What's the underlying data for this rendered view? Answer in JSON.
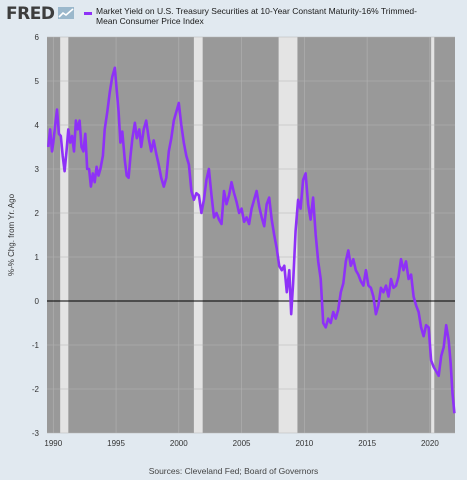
{
  "header": {
    "logo_text": "FRED",
    "legend_label": "Market Yield on U.S. Treasury Securities at 10-Year Constant Maturity-16% Trimmed-Mean Consumer Price Index",
    "series_color": "#8e31f7"
  },
  "footer": {
    "source": "Sources: Cleveland Fed; Board of Governors"
  },
  "chart_data": {
    "type": "line",
    "ylabel": "%-% Chg. from Yr. Ago",
    "xlim": [
      1989.5,
      2022.0
    ],
    "ylim": [
      -3,
      6
    ],
    "x_ticks": [
      "1990",
      "1995",
      "2000",
      "2005",
      "2010",
      "2015",
      "2020"
    ],
    "y_ticks": [
      "-3",
      "-2",
      "-1",
      "0",
      "1",
      "2",
      "3",
      "4",
      "5",
      "6"
    ],
    "grid": true,
    "background": "#999999",
    "recession_color": "#e4e4e4",
    "zero_line": true,
    "recessions": [
      [
        1990.55,
        1991.2
      ],
      [
        2001.2,
        2001.9
      ],
      [
        2007.95,
        2009.45
      ],
      [
        2020.1,
        2020.35
      ]
    ],
    "series": [
      {
        "color": "#8e31f7",
        "points": [
          [
            1989.6,
            3.5
          ],
          [
            1989.75,
            3.9
          ],
          [
            1989.9,
            3.4
          ],
          [
            1990.0,
            3.6
          ],
          [
            1990.15,
            4.0
          ],
          [
            1990.3,
            4.35
          ],
          [
            1990.45,
            3.8
          ],
          [
            1990.6,
            3.75
          ],
          [
            1990.75,
            3.3
          ],
          [
            1990.9,
            2.95
          ],
          [
            1991.05,
            3.4
          ],
          [
            1991.2,
            3.9
          ],
          [
            1991.35,
            3.6
          ],
          [
            1991.5,
            3.75
          ],
          [
            1991.65,
            3.4
          ],
          [
            1991.8,
            4.1
          ],
          [
            1991.95,
            3.9
          ],
          [
            1992.1,
            4.1
          ],
          [
            1992.25,
            3.5
          ],
          [
            1992.4,
            3.4
          ],
          [
            1992.55,
            3.8
          ],
          [
            1992.7,
            3.0
          ],
          [
            1992.85,
            3.0
          ],
          [
            1993.0,
            2.6
          ],
          [
            1993.15,
            2.9
          ],
          [
            1993.3,
            2.7
          ],
          [
            1993.45,
            3.05
          ],
          [
            1993.6,
            2.85
          ],
          [
            1993.75,
            3.0
          ],
          [
            1993.95,
            3.3
          ],
          [
            1994.1,
            3.9
          ],
          [
            1994.3,
            4.3
          ],
          [
            1994.5,
            4.75
          ],
          [
            1994.7,
            5.1
          ],
          [
            1994.9,
            5.3
          ],
          [
            1995.05,
            4.8
          ],
          [
            1995.2,
            4.3
          ],
          [
            1995.35,
            3.6
          ],
          [
            1995.5,
            3.85
          ],
          [
            1995.7,
            3.2
          ],
          [
            1995.85,
            2.85
          ],
          [
            1996.0,
            2.8
          ],
          [
            1996.15,
            3.3
          ],
          [
            1996.3,
            3.7
          ],
          [
            1996.5,
            4.05
          ],
          [
            1996.65,
            3.7
          ],
          [
            1996.85,
            3.9
          ],
          [
            1997.0,
            3.5
          ],
          [
            1997.2,
            3.9
          ],
          [
            1997.4,
            4.1
          ],
          [
            1997.6,
            3.7
          ],
          [
            1997.8,
            3.4
          ],
          [
            1998.0,
            3.65
          ],
          [
            1998.2,
            3.35
          ],
          [
            1998.4,
            3.1
          ],
          [
            1998.6,
            2.8
          ],
          [
            1998.8,
            2.6
          ],
          [
            1999.0,
            2.8
          ],
          [
            1999.2,
            3.4
          ],
          [
            1999.4,
            3.7
          ],
          [
            1999.6,
            4.1
          ],
          [
            1999.8,
            4.3
          ],
          [
            2000.0,
            4.5
          ],
          [
            2000.2,
            4.0
          ],
          [
            2000.4,
            3.6
          ],
          [
            2000.6,
            3.3
          ],
          [
            2000.8,
            3.1
          ],
          [
            2001.0,
            2.5
          ],
          [
            2001.2,
            2.3
          ],
          [
            2001.4,
            2.45
          ],
          [
            2001.6,
            2.4
          ],
          [
            2001.8,
            2.0
          ],
          [
            2002.0,
            2.3
          ],
          [
            2002.2,
            2.75
          ],
          [
            2002.4,
            3.0
          ],
          [
            2002.6,
            2.4
          ],
          [
            2002.8,
            1.9
          ],
          [
            2003.0,
            2.0
          ],
          [
            2003.2,
            1.85
          ],
          [
            2003.4,
            1.75
          ],
          [
            2003.6,
            2.5
          ],
          [
            2003.8,
            2.2
          ],
          [
            2004.0,
            2.4
          ],
          [
            2004.2,
            2.7
          ],
          [
            2004.4,
            2.45
          ],
          [
            2004.6,
            2.25
          ],
          [
            2004.8,
            2.0
          ],
          [
            2005.0,
            2.1
          ],
          [
            2005.2,
            1.8
          ],
          [
            2005.4,
            1.9
          ],
          [
            2005.6,
            1.75
          ],
          [
            2005.8,
            2.1
          ],
          [
            2006.0,
            2.3
          ],
          [
            2006.2,
            2.5
          ],
          [
            2006.4,
            2.15
          ],
          [
            2006.6,
            1.9
          ],
          [
            2006.8,
            1.7
          ],
          [
            2007.0,
            2.2
          ],
          [
            2007.2,
            2.35
          ],
          [
            2007.4,
            1.85
          ],
          [
            2007.6,
            1.5
          ],
          [
            2007.8,
            1.2
          ],
          [
            2008.0,
            0.8
          ],
          [
            2008.2,
            0.7
          ],
          [
            2008.4,
            0.8
          ],
          [
            2008.6,
            0.2
          ],
          [
            2008.8,
            0.7
          ],
          [
            2008.95,
            -0.3
          ],
          [
            2009.1,
            0.4
          ],
          [
            2009.3,
            1.6
          ],
          [
            2009.5,
            2.3
          ],
          [
            2009.7,
            2.1
          ],
          [
            2009.9,
            2.75
          ],
          [
            2010.1,
            2.9
          ],
          [
            2010.3,
            2.2
          ],
          [
            2010.5,
            1.85
          ],
          [
            2010.7,
            2.35
          ],
          [
            2010.9,
            1.5
          ],
          [
            2011.1,
            0.9
          ],
          [
            2011.3,
            0.5
          ],
          [
            2011.5,
            -0.5
          ],
          [
            2011.7,
            -0.6
          ],
          [
            2011.9,
            -0.4
          ],
          [
            2012.1,
            -0.5
          ],
          [
            2012.3,
            -0.25
          ],
          [
            2012.5,
            -0.4
          ],
          [
            2012.7,
            -0.2
          ],
          [
            2012.9,
            0.2
          ],
          [
            2013.1,
            0.4
          ],
          [
            2013.3,
            0.9
          ],
          [
            2013.5,
            1.15
          ],
          [
            2013.7,
            0.8
          ],
          [
            2013.9,
            0.95
          ],
          [
            2014.1,
            0.7
          ],
          [
            2014.3,
            0.6
          ],
          [
            2014.5,
            0.45
          ],
          [
            2014.7,
            0.35
          ],
          [
            2014.9,
            0.7
          ],
          [
            2015.1,
            0.35
          ],
          [
            2015.3,
            0.3
          ],
          [
            2015.5,
            0.1
          ],
          [
            2015.7,
            -0.3
          ],
          [
            2015.9,
            -0.1
          ],
          [
            2016.1,
            0.3
          ],
          [
            2016.3,
            0.2
          ],
          [
            2016.5,
            0.35
          ],
          [
            2016.7,
            0.1
          ],
          [
            2016.9,
            0.5
          ],
          [
            2017.1,
            0.3
          ],
          [
            2017.3,
            0.35
          ],
          [
            2017.5,
            0.55
          ],
          [
            2017.7,
            0.95
          ],
          [
            2017.9,
            0.7
          ],
          [
            2018.1,
            0.9
          ],
          [
            2018.3,
            0.5
          ],
          [
            2018.5,
            0.6
          ],
          [
            2018.7,
            0.1
          ],
          [
            2018.9,
            -0.1
          ],
          [
            2019.1,
            -0.25
          ],
          [
            2019.3,
            -0.6
          ],
          [
            2019.5,
            -0.8
          ],
          [
            2019.7,
            -0.55
          ],
          [
            2019.9,
            -0.6
          ],
          [
            2020.1,
            -1.35
          ],
          [
            2020.3,
            -1.5
          ],
          [
            2020.5,
            -1.6
          ],
          [
            2020.7,
            -1.7
          ],
          [
            2020.9,
            -1.25
          ],
          [
            2021.1,
            -1.05
          ],
          [
            2021.3,
            -0.55
          ],
          [
            2021.5,
            -0.9
          ],
          [
            2021.65,
            -1.4
          ],
          [
            2021.8,
            -2.1
          ],
          [
            2021.95,
            -2.55
          ]
        ]
      }
    ]
  }
}
